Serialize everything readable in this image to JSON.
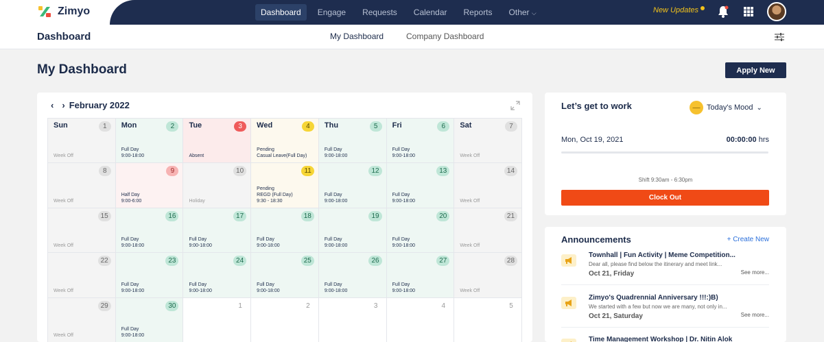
{
  "app": {
    "name": "Zimyo"
  },
  "nav": {
    "items": [
      "Dashboard",
      "Engage",
      "Requests",
      "Calendar",
      "Reports",
      "Other"
    ],
    "new_updates": "New Updates"
  },
  "subheader": {
    "title": "Dashboard",
    "tabs": [
      "My Dashboard",
      "Company Dashboard"
    ]
  },
  "page": {
    "title": "My Dashboard",
    "apply_new": "Apply New"
  },
  "calendar": {
    "month": "February 2022",
    "weeks": [
      [
        {
          "day": "Sun",
          "date": "1",
          "badge": "grey",
          "status": "off",
          "text": "Week Off"
        },
        {
          "day": "Mon",
          "date": "2",
          "badge": "green",
          "status": "full",
          "text": "Full Day\n9:00-18:00"
        },
        {
          "day": "Tue",
          "date": "3",
          "badge": "red",
          "status": "absent",
          "text": "Absent"
        },
        {
          "day": "Wed",
          "date": "4",
          "badge": "yellow",
          "status": "pending",
          "text": "Pending\nCasual Leave(Full Day)"
        },
        {
          "day": "Thu",
          "date": "5",
          "badge": "green",
          "status": "full",
          "text": "Full Day\n9:00-18:00"
        },
        {
          "day": "Fri",
          "date": "6",
          "badge": "green",
          "status": "full",
          "text": "Full Day\n9:00-18:00"
        },
        {
          "day": "Sat",
          "date": "7",
          "badge": "grey",
          "status": "off",
          "text": "Week Off"
        }
      ],
      [
        {
          "day": "",
          "date": "8",
          "badge": "grey",
          "status": "off",
          "text": "Week Off"
        },
        {
          "day": "",
          "date": "9",
          "badge": "pink",
          "status": "half",
          "text": "Half Day\n9:00-6:00"
        },
        {
          "day": "",
          "date": "10",
          "badge": "grey",
          "status": "off",
          "text": "Holiday"
        },
        {
          "day": "",
          "date": "11",
          "badge": "yellow",
          "status": "pending",
          "text": "Pending\nREGD (Full Day)\n9:30 - 18:30"
        },
        {
          "day": "",
          "date": "12",
          "badge": "green",
          "status": "full",
          "text": "Full Day\n9:00-18:00"
        },
        {
          "day": "",
          "date": "13",
          "badge": "green",
          "status": "full",
          "text": "Full Day\n9:00-18:00"
        },
        {
          "day": "",
          "date": "14",
          "badge": "grey",
          "status": "off",
          "text": "Week Off"
        }
      ],
      [
        {
          "day": "",
          "date": "15",
          "badge": "grey",
          "status": "off",
          "text": "Week Off"
        },
        {
          "day": "",
          "date": "16",
          "badge": "green",
          "status": "full",
          "text": "Full Day\n9:00-18:00"
        },
        {
          "day": "",
          "date": "17",
          "badge": "green",
          "status": "full",
          "text": "Full Day\n9:00-18:00"
        },
        {
          "day": "",
          "date": "18",
          "badge": "green",
          "status": "full",
          "text": "Full Day\n9:00-18:00"
        },
        {
          "day": "",
          "date": "19",
          "badge": "green",
          "status": "full",
          "text": "Full Day\n9:00-18:00"
        },
        {
          "day": "",
          "date": "20",
          "badge": "green",
          "status": "full",
          "text": "Full Day\n9:00-18:00"
        },
        {
          "day": "",
          "date": "21",
          "badge": "grey",
          "status": "off",
          "text": "Week Off"
        }
      ],
      [
        {
          "day": "",
          "date": "22",
          "badge": "grey",
          "status": "off",
          "text": "Week Off"
        },
        {
          "day": "",
          "date": "23",
          "badge": "green",
          "status": "full",
          "text": "Full Day\n9:00-18:00"
        },
        {
          "day": "",
          "date": "24",
          "badge": "green",
          "status": "full",
          "text": "Full Day\n9:00-18:00"
        },
        {
          "day": "",
          "date": "25",
          "badge": "green",
          "status": "full",
          "text": "Full Day\n9:00-18:00"
        },
        {
          "day": "",
          "date": "26",
          "badge": "green",
          "status": "full",
          "text": "Full Day\n9:00-18:00"
        },
        {
          "day": "",
          "date": "27",
          "badge": "green",
          "status": "full",
          "text": "Full Day\n9:00-18:00"
        },
        {
          "day": "",
          "date": "28",
          "badge": "grey",
          "status": "off",
          "text": "Week Off"
        }
      ],
      [
        {
          "day": "",
          "date": "29",
          "badge": "grey",
          "status": "off",
          "text": "Week Off"
        },
        {
          "day": "",
          "date": "30",
          "badge": "green",
          "status": "full",
          "text": "Full Day\n9:00-18:00"
        },
        {
          "day": "",
          "date": "1",
          "badge": "plain",
          "status": "out",
          "text": ""
        },
        {
          "day": "",
          "date": "2",
          "badge": "plain",
          "status": "out",
          "text": ""
        },
        {
          "day": "",
          "date": "3",
          "badge": "plain",
          "status": "out",
          "text": ""
        },
        {
          "day": "",
          "date": "4",
          "badge": "plain",
          "status": "out",
          "text": ""
        },
        {
          "day": "",
          "date": "5",
          "badge": "plain",
          "status": "out",
          "text": ""
        }
      ]
    ]
  },
  "work": {
    "title": "Let’s get to work",
    "mood_label": "Today's Mood",
    "date": "Mon, Oct 19, 2021",
    "time_value": "00:00:00",
    "time_unit": "hrs",
    "shift": "Shift  9:30am - 6:30pm",
    "clock_out": "Clock Out"
  },
  "announcements": {
    "title": "Announcements",
    "create": "+ Create New",
    "items": [
      {
        "title": "Townhall | Fun Activity | Meme Competition...",
        "body": "Dear all, please find below the itinerary and meet link...",
        "date": "Oct 21, Friday",
        "more": "See more..."
      },
      {
        "title": "Zimyo's Quadrennial Anniversary !!!:)B)",
        "body": "We started with a few but now we are many, not only in...",
        "date": "Oct 21, Saturday",
        "more": "See more..."
      },
      {
        "title": "Time Management Workshop | Dr. Nitin Alok",
        "body": "",
        "date": "",
        "more": ""
      }
    ]
  },
  "colors": {
    "navy": "#1e2d4f",
    "accent_orange": "#f04a16",
    "updates_yellow": "#f2c21b"
  }
}
